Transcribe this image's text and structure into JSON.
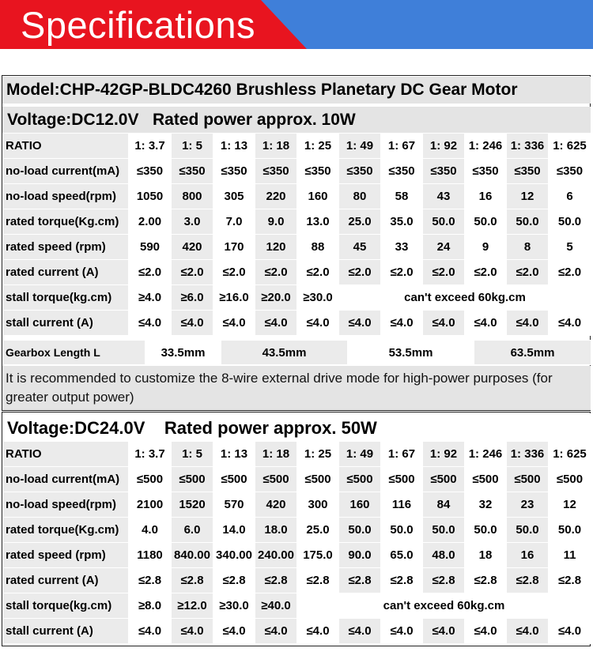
{
  "header": {
    "title": "Specifications"
  },
  "model": "Model:CHP-42GP-BLDC4260 Brushless Planetary DC Gear Motor",
  "section12": {
    "voltage": "Voltage:DC12.0V",
    "power": "Rated power approx. 10W",
    "rows": [
      {
        "label": "RATIO",
        "cells": [
          "1: 3.7",
          "1: 5",
          "1: 13",
          "1: 18",
          "1: 25",
          "1: 49",
          "1: 67",
          "1: 92",
          "1: 246",
          "1: 336",
          "1: 625"
        ]
      },
      {
        "label": "no-load current(mA)",
        "cells": [
          "≤350",
          "≤350",
          "≤350",
          "≤350",
          "≤350",
          "≤350",
          "≤350",
          "≤350",
          "≤350",
          "≤350",
          "≤350"
        ]
      },
      {
        "label": "no-load speed(rpm)",
        "cells": [
          "1050",
          "800",
          "305",
          "220",
          "160",
          "80",
          "58",
          "43",
          "16",
          "12",
          "6"
        ]
      },
      {
        "label": "rated torque(Kg.cm)",
        "cells": [
          "2.00",
          "3.0",
          "7.0",
          "9.0",
          "13.0",
          "25.0",
          "35.0",
          "50.0",
          "50.0",
          "50.0",
          "50.0"
        ]
      },
      {
        "label": "rated speed  (rpm)",
        "cells": [
          "590",
          "420",
          "170",
          "120",
          "88",
          "45",
          "33",
          "24",
          "9",
          "8",
          "5"
        ]
      },
      {
        "label": "rated current  (A)",
        "cells": [
          "≤2.0",
          "≤2.0",
          "≤2.0",
          "≤2.0",
          "≤2.0",
          "≤2.0",
          "≤2.0",
          "≤2.0",
          "≤2.0",
          "≤2.0",
          "≤2.0"
        ]
      },
      {
        "label": "stall torque(kg.cm)",
        "cells": [
          "≥4.0",
          "≥6.0",
          "≥16.0",
          "≥20.0",
          "≥30.0"
        ],
        "merged": "can't exceed 60kg.cm"
      },
      {
        "label": "stall current  (A)",
        "cells": [
          "≤4.0",
          "≤4.0",
          "≤4.0",
          "≤4.0",
          "≤4.0",
          "≤4.0",
          "≤4.0",
          "≤4.0",
          "≤4.0",
          "≤4.0",
          "≤4.0"
        ]
      }
    ],
    "gearbox": {
      "label": "Gearbox Length L",
      "values": [
        "33.5mm",
        "43.5mm",
        "53.5mm",
        "63.5mm"
      ]
    },
    "note": "It is recommended to customize the 8-wire external drive mode for high-power purposes (for greater output power)"
  },
  "section24": {
    "voltage": "Voltage:DC24.0V",
    "power": "Rated power approx. 50W",
    "rows": [
      {
        "label": "RATIO",
        "cells": [
          "1: 3.7",
          "1: 5",
          "1: 13",
          "1: 18",
          "1: 25",
          "1: 49",
          "1: 67",
          "1: 92",
          "1: 246",
          "1: 336",
          "1: 625"
        ]
      },
      {
        "label": "no-load current(mA)",
        "cells": [
          "≤500",
          "≤500",
          "≤500",
          "≤500",
          "≤500",
          "≤500",
          "≤500",
          "≤500",
          "≤500",
          "≤500",
          "≤500"
        ]
      },
      {
        "label": "no-load speed(rpm)",
        "cells": [
          "2100",
          "1520",
          "570",
          "420",
          "300",
          "160",
          "116",
          "84",
          "32",
          "23",
          "12"
        ]
      },
      {
        "label": "rated torque(Kg.cm)",
        "cells": [
          "4.0",
          "6.0",
          "14.0",
          "18.0",
          "25.0",
          "50.0",
          "50.0",
          "50.0",
          "50.0",
          "50.0",
          "50.0"
        ]
      },
      {
        "label": "rated speed  (rpm)",
        "cells": [
          "1180",
          "840.00",
          "340.00",
          "240.00",
          "175.0",
          "90.0",
          "65.0",
          "48.0",
          "18",
          "16",
          "11"
        ]
      },
      {
        "label": "rated current  (A)",
        "cells": [
          "≤2.8",
          "≤2.8",
          "≤2.8",
          "≤2.8",
          "≤2.8",
          "≤2.8",
          "≤2.8",
          "≤2.8",
          "≤2.8",
          "≤2.8",
          "≤2.8"
        ]
      },
      {
        "label": "stall torque(kg.cm)",
        "cells": [
          "≥8.0",
          "≥12.0",
          "≥30.0",
          "≥40.0"
        ],
        "merged": "can't exceed 60kg.cm"
      },
      {
        "label": "stall current  (A)",
        "cells": [
          "≤4.0",
          "≤4.0",
          "≤4.0",
          "≤4.0",
          "≤4.0",
          "≤4.0",
          "≤4.0",
          "≤4.0",
          "≤4.0",
          "≤4.0",
          "≤4.0"
        ]
      }
    ]
  }
}
